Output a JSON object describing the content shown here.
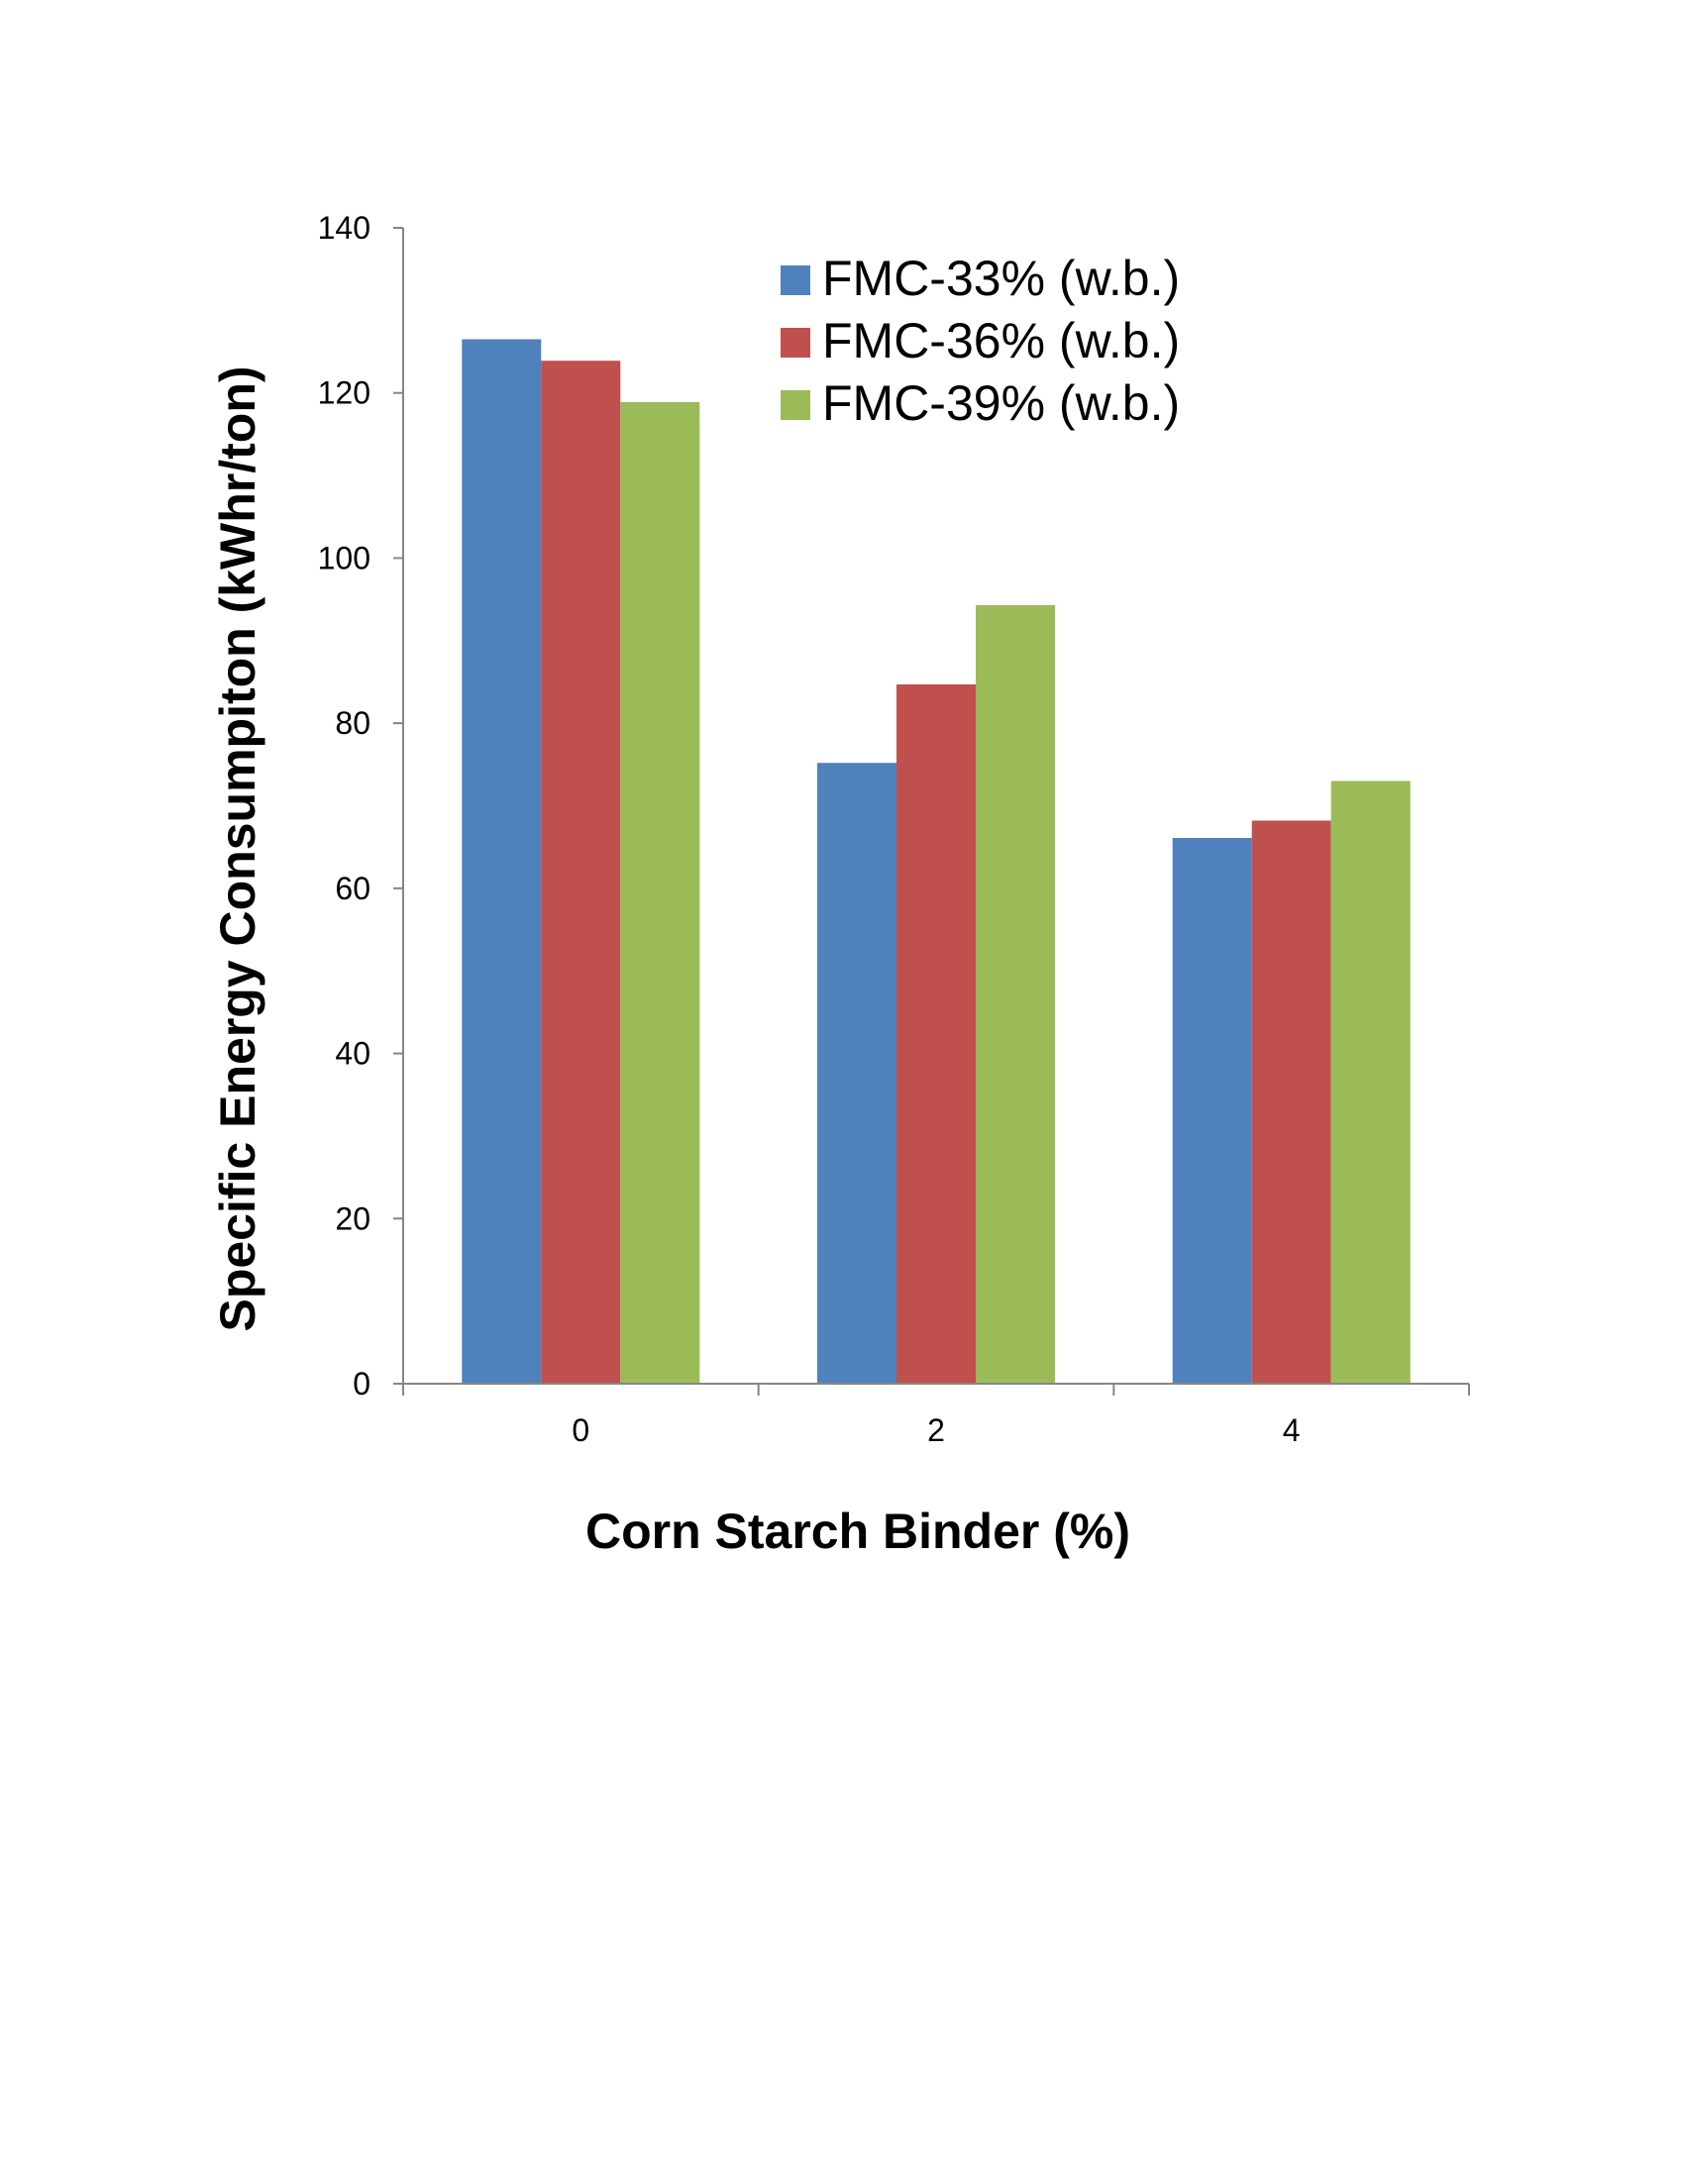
{
  "chart_data": {
    "type": "bar",
    "title": "",
    "xlabel": "Corn Starch Binder (%)",
    "ylabel": "Specific Energy Consumpiton (kWhr/ton)",
    "categories": [
      "0",
      "2",
      "4"
    ],
    "ylim": [
      0,
      140
    ],
    "yticks": [
      0,
      20,
      40,
      60,
      80,
      100,
      120,
      140
    ],
    "grid": false,
    "legend_position": "top-right",
    "series": [
      {
        "name": "FMC-33% (w.b.)",
        "color": "#4F81BD",
        "values": [
          126.5,
          75.2,
          66.1
        ]
      },
      {
        "name": "FMC-36% (w.b.)",
        "color": "#C0504D",
        "values": [
          123.9,
          84.7,
          68.2
        ]
      },
      {
        "name": "FMC-39% (w.b.)",
        "color": "#9BBB59",
        "values": [
          118.9,
          94.3,
          73.0
        ]
      }
    ]
  }
}
